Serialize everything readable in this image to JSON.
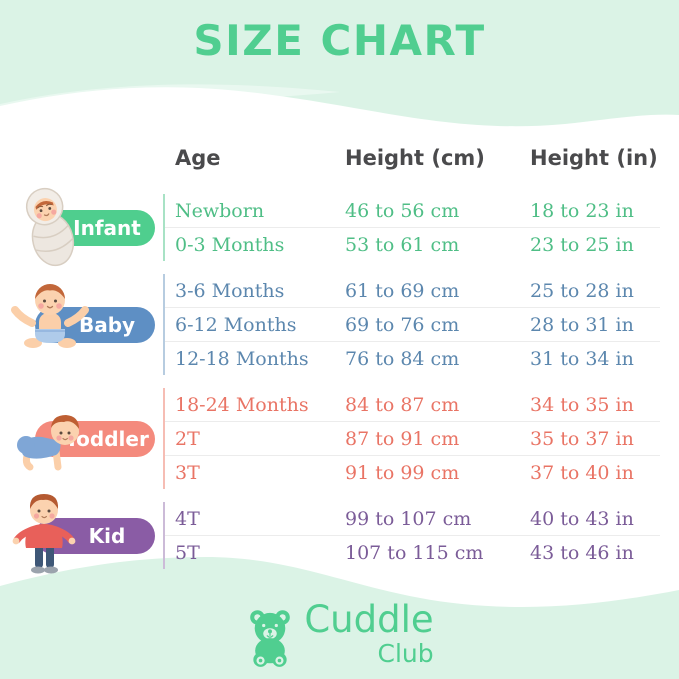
{
  "page": {
    "title": "SIZE CHART"
  },
  "theme": {
    "background": "#DBF3E6",
    "panel": "#FFFFFF",
    "accent_green": "#50CE90",
    "header_text": "#4A4A4C",
    "divider": "#ECECEC"
  },
  "table": {
    "headers": [
      "Age",
      "Height (cm)",
      "Height (in)"
    ],
    "groups": [
      {
        "id": "infant",
        "label": "Infant",
        "figure": "swaddled-infant-illustration",
        "pill_color": "#4FCE8E",
        "text_color": "#4FBE86",
        "line_color": "#A8E2C5",
        "rows": [
          [
            "Newborn",
            "46 to 56 cm",
            "18 to 23 in"
          ],
          [
            "0-3 Months",
            "53 to 61 cm",
            "23 to 25 in"
          ]
        ]
      },
      {
        "id": "baby",
        "label": "Baby",
        "figure": "sitting-baby-illustration",
        "pill_color": "#5E8FC4",
        "text_color": "#5C87AE",
        "line_color": "#B7CCE0",
        "rows": [
          [
            "3-6 Months",
            "61 to 69 cm",
            "25 to 28 in"
          ],
          [
            "6-12 Months",
            "69 to 76 cm",
            "28 to 31 in"
          ],
          [
            "12-18 Months",
            "76 to 84 cm",
            "31 to 34 in"
          ]
        ]
      },
      {
        "id": "toddler",
        "label": "Toddler",
        "figure": "crawling-toddler-illustration",
        "pill_color": "#F48A7D",
        "text_color": "#E97465",
        "line_color": "#F6BDB4",
        "rows": [
          [
            "18-24 Months",
            "84 to 87 cm",
            "34 to 35 in"
          ],
          [
            "2T",
            "87 to 91 cm",
            "35 to 37 in"
          ],
          [
            "3T",
            "91 to 99 cm",
            "37 to 40 in"
          ]
        ]
      },
      {
        "id": "kid",
        "label": "Kid",
        "figure": "standing-kid-illustration",
        "pill_color": "#8A5CA5",
        "text_color": "#7B5C98",
        "line_color": "#CCBBD8",
        "rows": [
          [
            "4T",
            "99 to 107 cm",
            "40 to 43 in"
          ],
          [
            "5T",
            "107 to 115 cm",
            "43 to 46 in"
          ]
        ]
      }
    ]
  },
  "footer": {
    "brand_primary": "Cuddle",
    "brand_secondary": "Club",
    "bear_icon": "teddy-bear-icon"
  },
  "chart_data": {
    "type": "table",
    "title": "SIZE CHART",
    "columns": [
      "Age",
      "Height (cm)",
      "Height (in)"
    ],
    "rows": [
      {
        "group": "Infant",
        "age": "Newborn",
        "height_cm": "46 to 56 cm",
        "height_in": "18 to 23 in"
      },
      {
        "group": "Infant",
        "age": "0-3 Months",
        "height_cm": "53 to 61 cm",
        "height_in": "23 to 25 in"
      },
      {
        "group": "Baby",
        "age": "3-6 Months",
        "height_cm": "61 to 69 cm",
        "height_in": "25 to 28 in"
      },
      {
        "group": "Baby",
        "age": "6-12 Months",
        "height_cm": "69 to 76 cm",
        "height_in": "28 to 31 in"
      },
      {
        "group": "Baby",
        "age": "12-18 Months",
        "height_cm": "76 to 84 cm",
        "height_in": "31 to 34 in"
      },
      {
        "group": "Toddler",
        "age": "18-24 Months",
        "height_cm": "84 to 87 cm",
        "height_in": "34 to 35 in"
      },
      {
        "group": "Toddler",
        "age": "2T",
        "height_cm": "87 to 91 cm",
        "height_in": "35 to 37 in"
      },
      {
        "group": "Toddler",
        "age": "3T",
        "height_cm": "91 to 99 cm",
        "height_in": "37 to 40 in"
      },
      {
        "group": "Kid",
        "age": "4T",
        "height_cm": "99 to 107 cm",
        "height_in": "40 to 43 in"
      },
      {
        "group": "Kid",
        "age": "5T",
        "height_cm": "107 to 115 cm",
        "height_in": "43 to 46 in"
      }
    ]
  }
}
